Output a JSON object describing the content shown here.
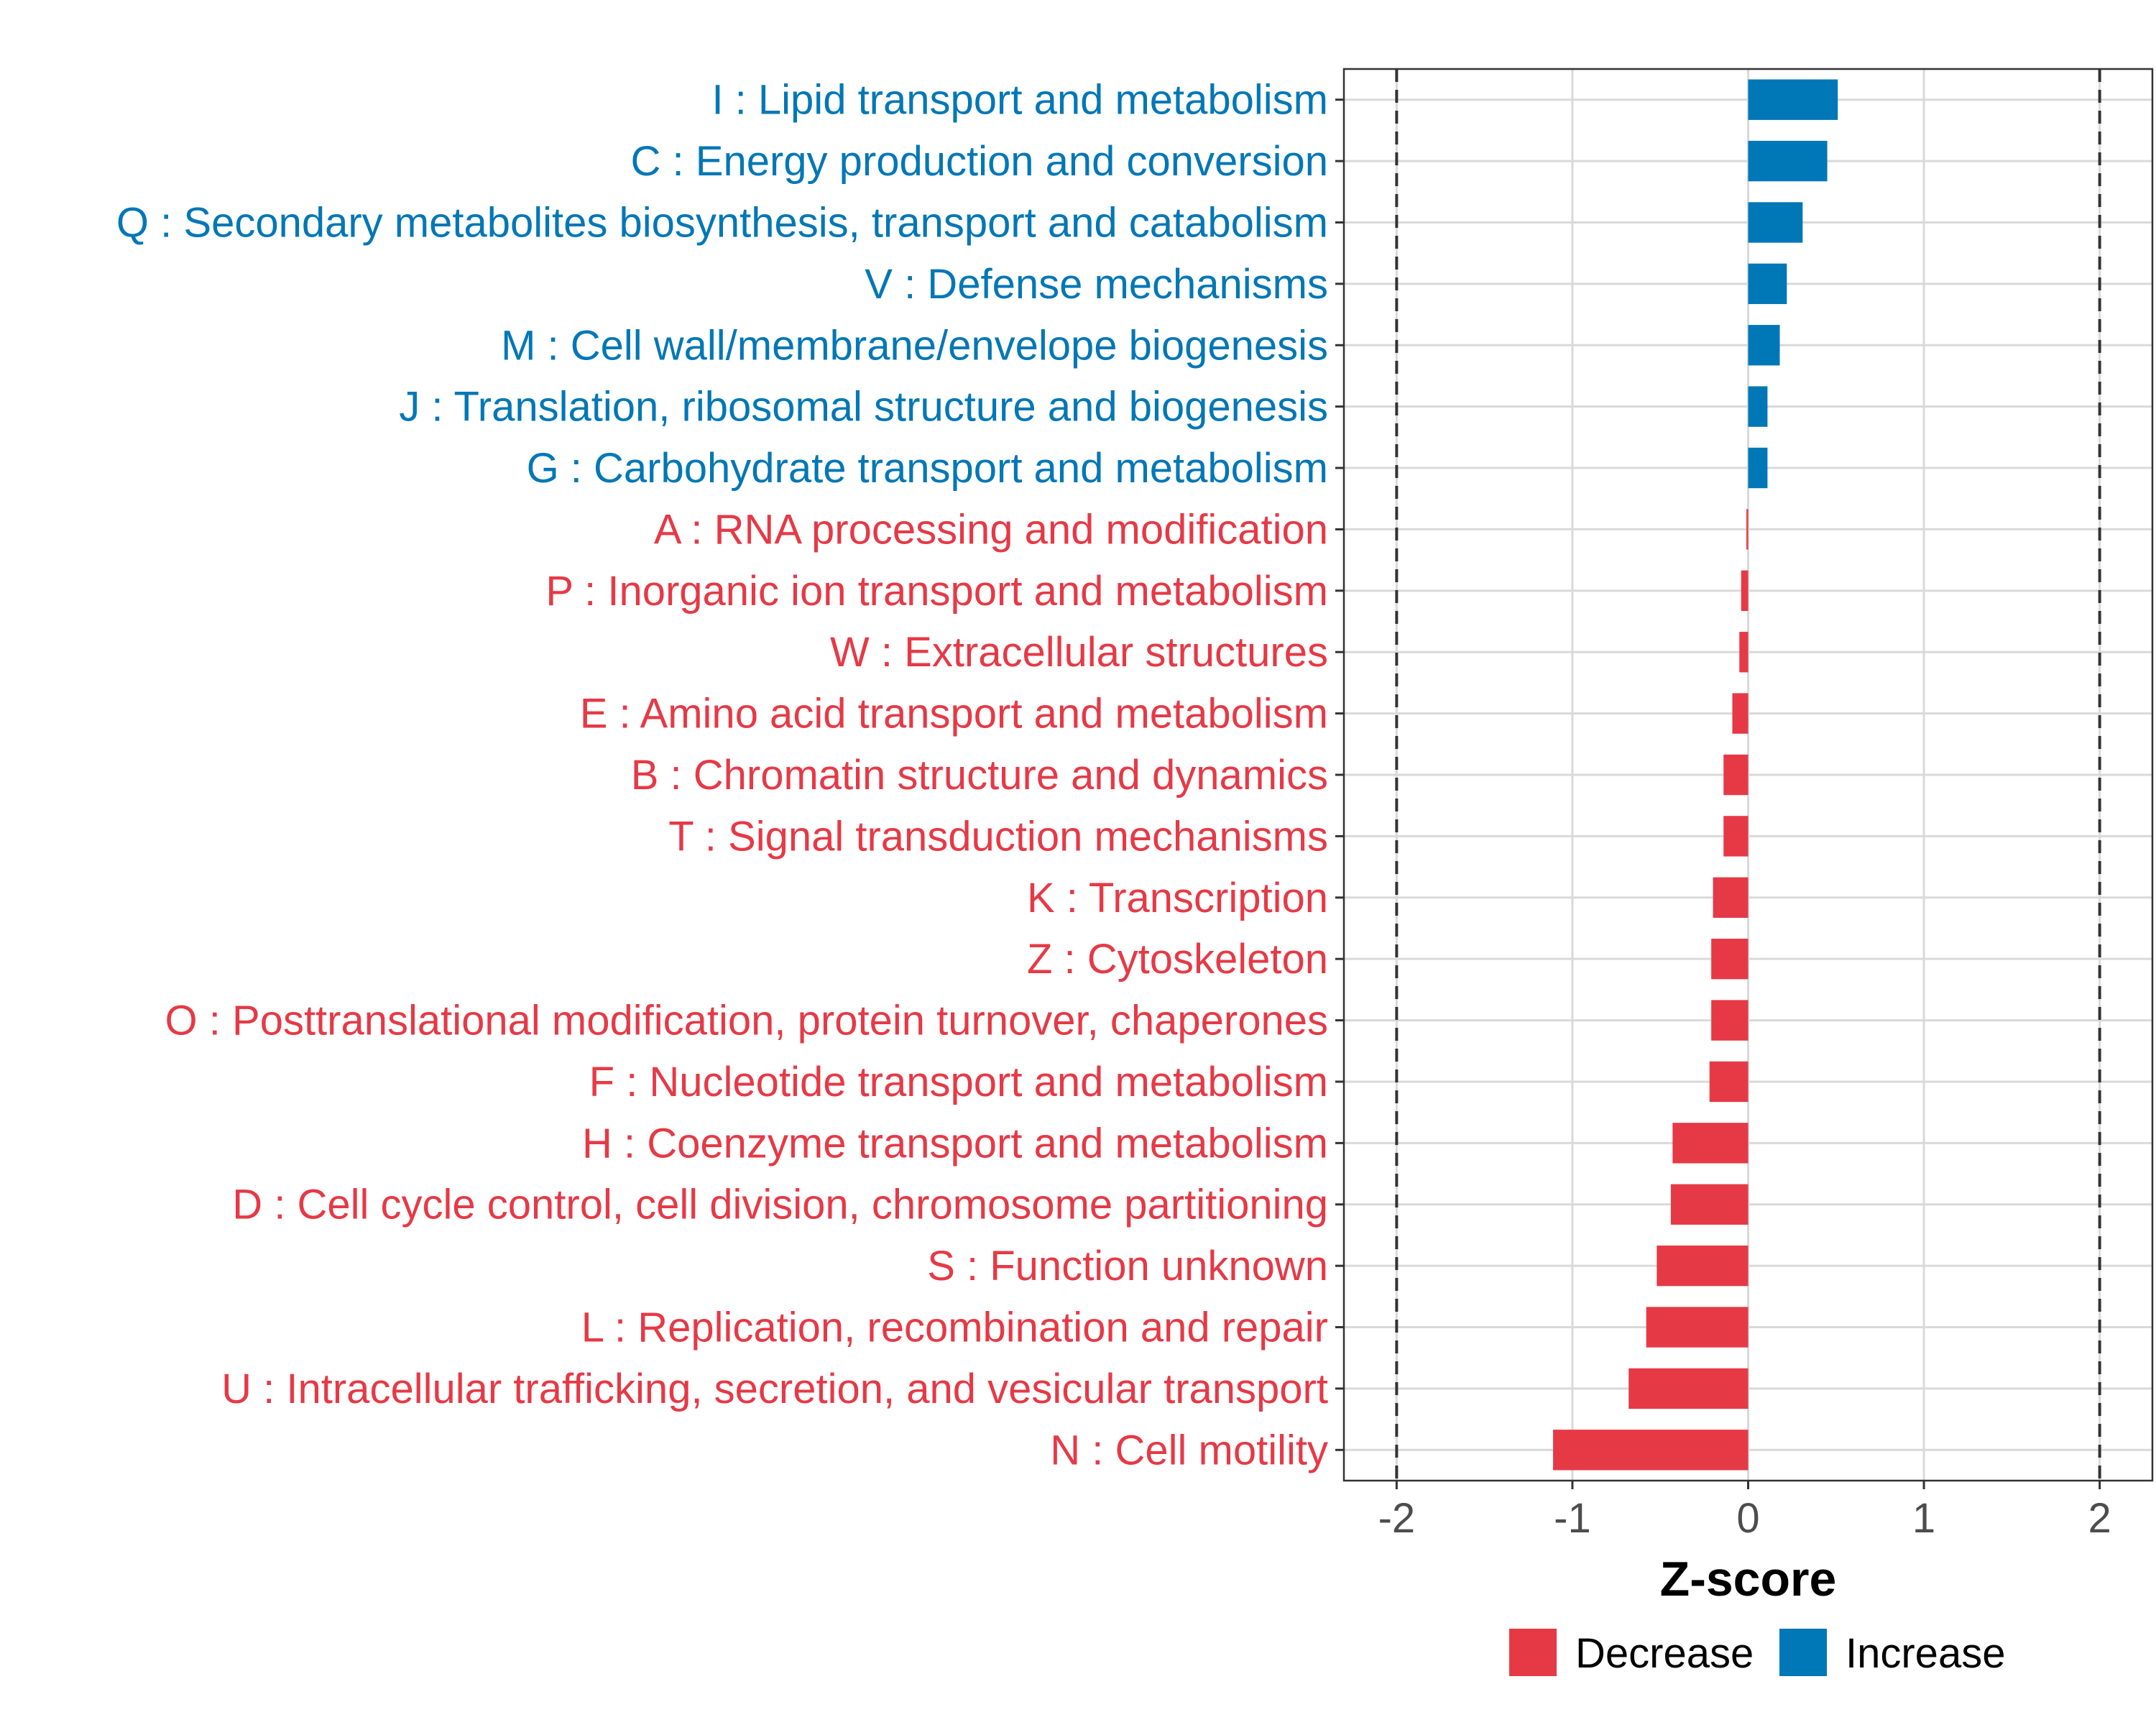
{
  "chart_data": {
    "type": "bar",
    "orientation": "horizontal",
    "xlabel": "Z-score",
    "xlim": [
      -2.3,
      2.3
    ],
    "xticks": [
      -2,
      -1,
      0,
      1,
      2
    ],
    "xtick_labels": [
      "-2",
      "-1",
      "0",
      "1",
      "2"
    ],
    "reference_lines": [
      -2,
      2
    ],
    "grid": true,
    "legend_position": "bottom",
    "colors": {
      "Decrease": "#e63946",
      "Increase": "#0077b6",
      "reference_line": "#333333"
    },
    "legend": [
      {
        "label": "Decrease",
        "color": "#e63946"
      },
      {
        "label": "Increase",
        "color": "#0077b6"
      }
    ],
    "categories": [
      "I : Lipid transport and metabolism",
      "C : Energy production and conversion",
      "Q : Secondary metabolites biosynthesis, transport and catabolism",
      "V : Defense mechanisms",
      "M : Cell wall/membrane/envelope biogenesis",
      "J : Translation, ribosomal structure and biogenesis",
      "G : Carbohydrate transport and metabolism",
      "A : RNA processing and modification",
      "P : Inorganic ion transport and metabolism",
      "W : Extracellular structures",
      "E : Amino acid transport and metabolism",
      "B : Chromatin structure and dynamics",
      "T : Signal transduction mechanisms",
      "K : Transcription",
      "Z : Cytoskeleton",
      "O : Posttranslational modification, protein turnover, chaperones",
      "F : Nucleotide transport and metabolism",
      "H : Coenzyme transport and metabolism",
      "D : Cell cycle control, cell division, chromosome partitioning",
      "S : Function unknown",
      "L : Replication, recombination and repair",
      "U : Intracellular trafficking, secretion, and vesicular transport",
      "N : Cell motility"
    ],
    "values": [
      0.51,
      0.45,
      0.31,
      0.22,
      0.18,
      0.11,
      0.11,
      -0.01,
      -0.04,
      -0.05,
      -0.09,
      -0.14,
      -0.14,
      -0.2,
      -0.21,
      -0.21,
      -0.22,
      -0.43,
      -0.44,
      -0.52,
      -0.58,
      -0.68,
      -1.11
    ],
    "groups": [
      "Increase",
      "Increase",
      "Increase",
      "Increase",
      "Increase",
      "Increase",
      "Increase",
      "Decrease",
      "Decrease",
      "Decrease",
      "Decrease",
      "Decrease",
      "Decrease",
      "Decrease",
      "Decrease",
      "Decrease",
      "Decrease",
      "Decrease",
      "Decrease",
      "Decrease",
      "Decrease",
      "Decrease",
      "Decrease"
    ]
  }
}
